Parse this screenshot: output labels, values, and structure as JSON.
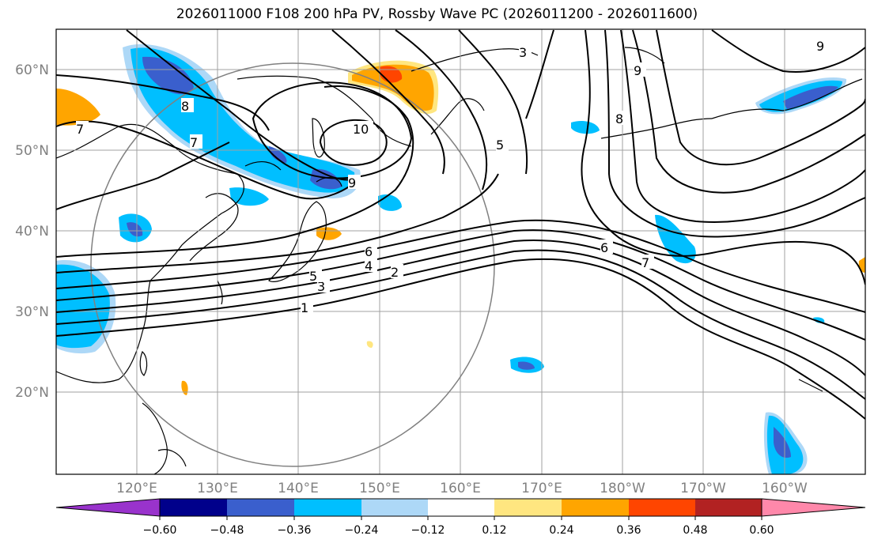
{
  "title": "2026011000 F108 200 hPa PV, Rossby Wave PC (2026011200 - 2026011600)",
  "lon_ticks": [
    "120°E",
    "130°E",
    "140°E",
    "150°E",
    "160°E",
    "170°E",
    "180°W",
    "170°W",
    "160°W"
  ],
  "lat_ticks": [
    "60°N",
    "50°N",
    "40°N",
    "30°N",
    "20°N"
  ],
  "contour_labels": [
    "1",
    "2",
    "3",
    "4",
    "5",
    "6",
    "7",
    "8",
    "9",
    "10",
    "3",
    "5",
    "6",
    "7",
    "8",
    "9",
    "9",
    "7"
  ],
  "colorbar": {
    "tick_labels": [
      "−0.60",
      "−0.48",
      "−0.36",
      "−0.24",
      "−0.12",
      "0.12",
      "0.24",
      "0.36",
      "0.48",
      "0.60"
    ],
    "colors": [
      "#9933cc",
      "#00008b",
      "#3a5fcd",
      "#00bfff",
      "#add8f7",
      "#ffffff",
      "#ffe680",
      "#ffa500",
      "#ff4500",
      "#b22222",
      "#ff88aa"
    ]
  }
}
